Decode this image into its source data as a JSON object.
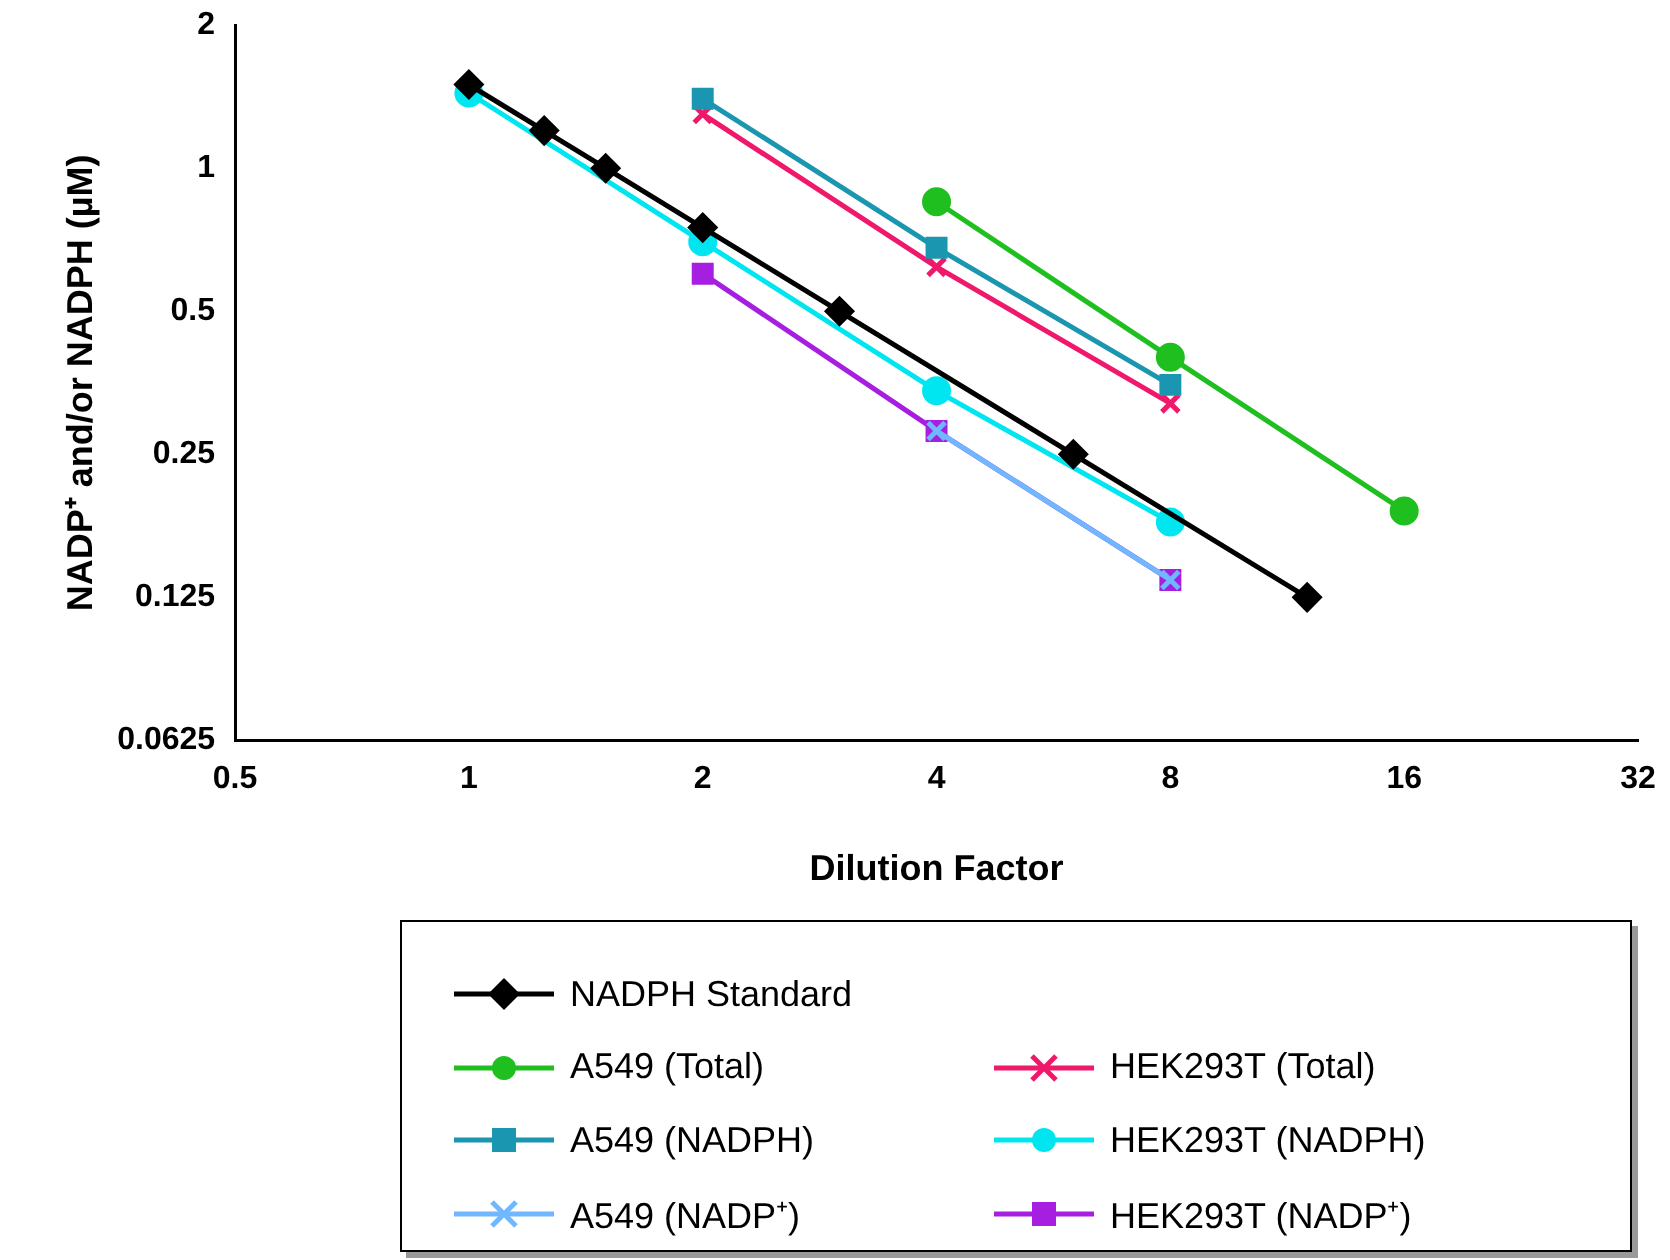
{
  "chart_data": {
    "type": "line",
    "xlabel": "Dilution Factor",
    "ylabel": "NADP⁺ and/or NADPH (µM)",
    "log": "xy",
    "grid": false,
    "legend": "bottom",
    "line_style": "solid",
    "xlim": [
      0.5,
      32
    ],
    "xticks": [
      0.5,
      1,
      2,
      4,
      8,
      16,
      32
    ],
    "ylim": [
      0.0625,
      2
    ],
    "yticks": [
      0.0625,
      0.125,
      0.25,
      0.5,
      1,
      2
    ],
    "series": [
      {
        "name": "NADPH Standard",
        "color": "#000000",
        "marker": "diamond",
        "x": [
          1,
          1.25,
          1.5,
          2,
          3,
          6,
          12
        ],
        "values": [
          1.5,
          1.2,
          1.0,
          0.75,
          0.5,
          0.25,
          0.125
        ]
      },
      {
        "name": "A549 (Total)",
        "color": "#1fbf1f",
        "marker": "circle",
        "x": [
          4,
          8,
          16
        ],
        "values": [
          0.85,
          0.4,
          0.19
        ]
      },
      {
        "name": "A549 (NADPH)",
        "color": "#1a96b0",
        "marker": "square",
        "x": [
          2,
          4,
          8
        ],
        "values": [
          1.4,
          0.68,
          0.35
        ]
      },
      {
        "name": "A549 (NADP⁺)",
        "color": "#6fb8ff",
        "marker": "cross",
        "x": [
          4,
          8
        ],
        "values": [
          0.28,
          0.136
        ]
      },
      {
        "name": "HEK293T (Total)",
        "color": "#f0186a",
        "marker": "cross",
        "x": [
          2,
          4,
          8
        ],
        "values": [
          1.3,
          0.62,
          0.32
        ]
      },
      {
        "name": "HEK293T (NADPH)",
        "color": "#00e6f0",
        "marker": "circle",
        "x": [
          1,
          2,
          4,
          8
        ],
        "values": [
          1.44,
          0.7,
          0.34,
          0.18
        ]
      },
      {
        "name": "HEK293T (NADP⁺)",
        "color": "#a61fe0",
        "marker": "square",
        "x": [
          2,
          4,
          8
        ],
        "values": [
          0.6,
          0.28,
          0.136
        ]
      }
    ]
  }
}
